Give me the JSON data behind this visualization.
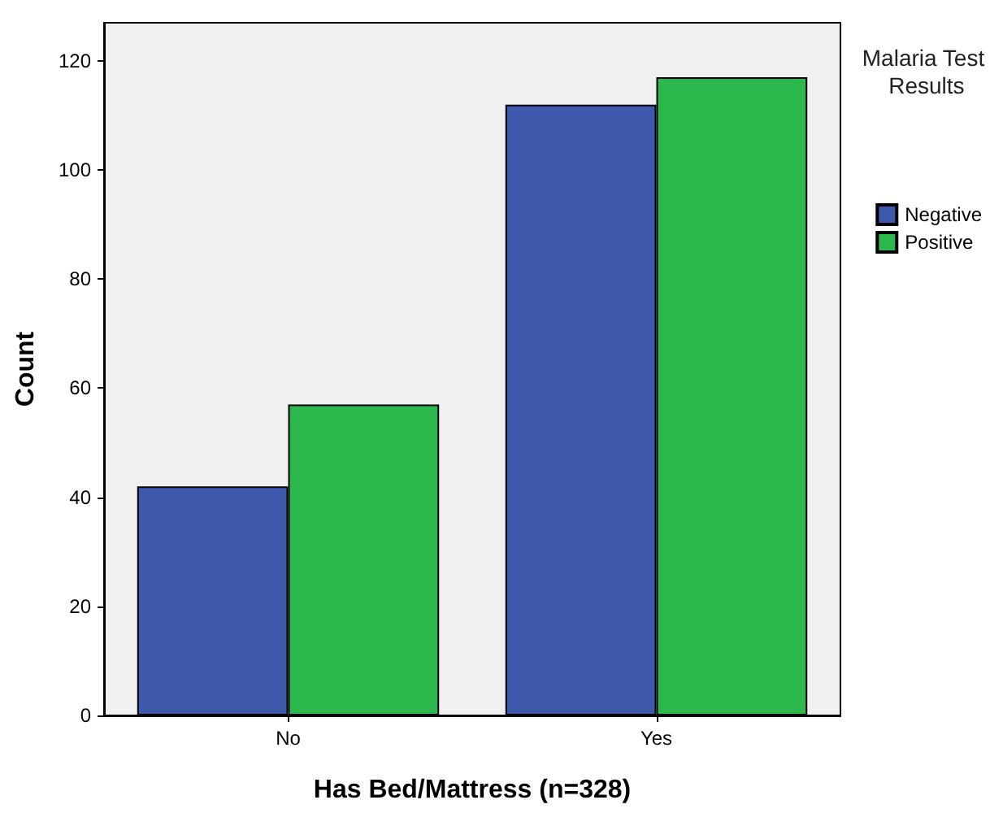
{
  "chart_data": {
    "type": "bar",
    "xlabel": "Has Bed/Mattress (n=328)",
    "ylabel": "Count",
    "legend_title": "Malaria Test Results",
    "categories": [
      "No",
      "Yes"
    ],
    "series": [
      {
        "name": "Negative",
        "color": "#3e58ac",
        "values": [
          42,
          112
        ]
      },
      {
        "name": "Positive",
        "color": "#2db84d",
        "values": [
          57,
          117
        ]
      }
    ],
    "ylim": [
      0,
      127
    ],
    "yticks": [
      0,
      20,
      40,
      60,
      80,
      100,
      120
    ],
    "grid": false,
    "legend": "right"
  }
}
